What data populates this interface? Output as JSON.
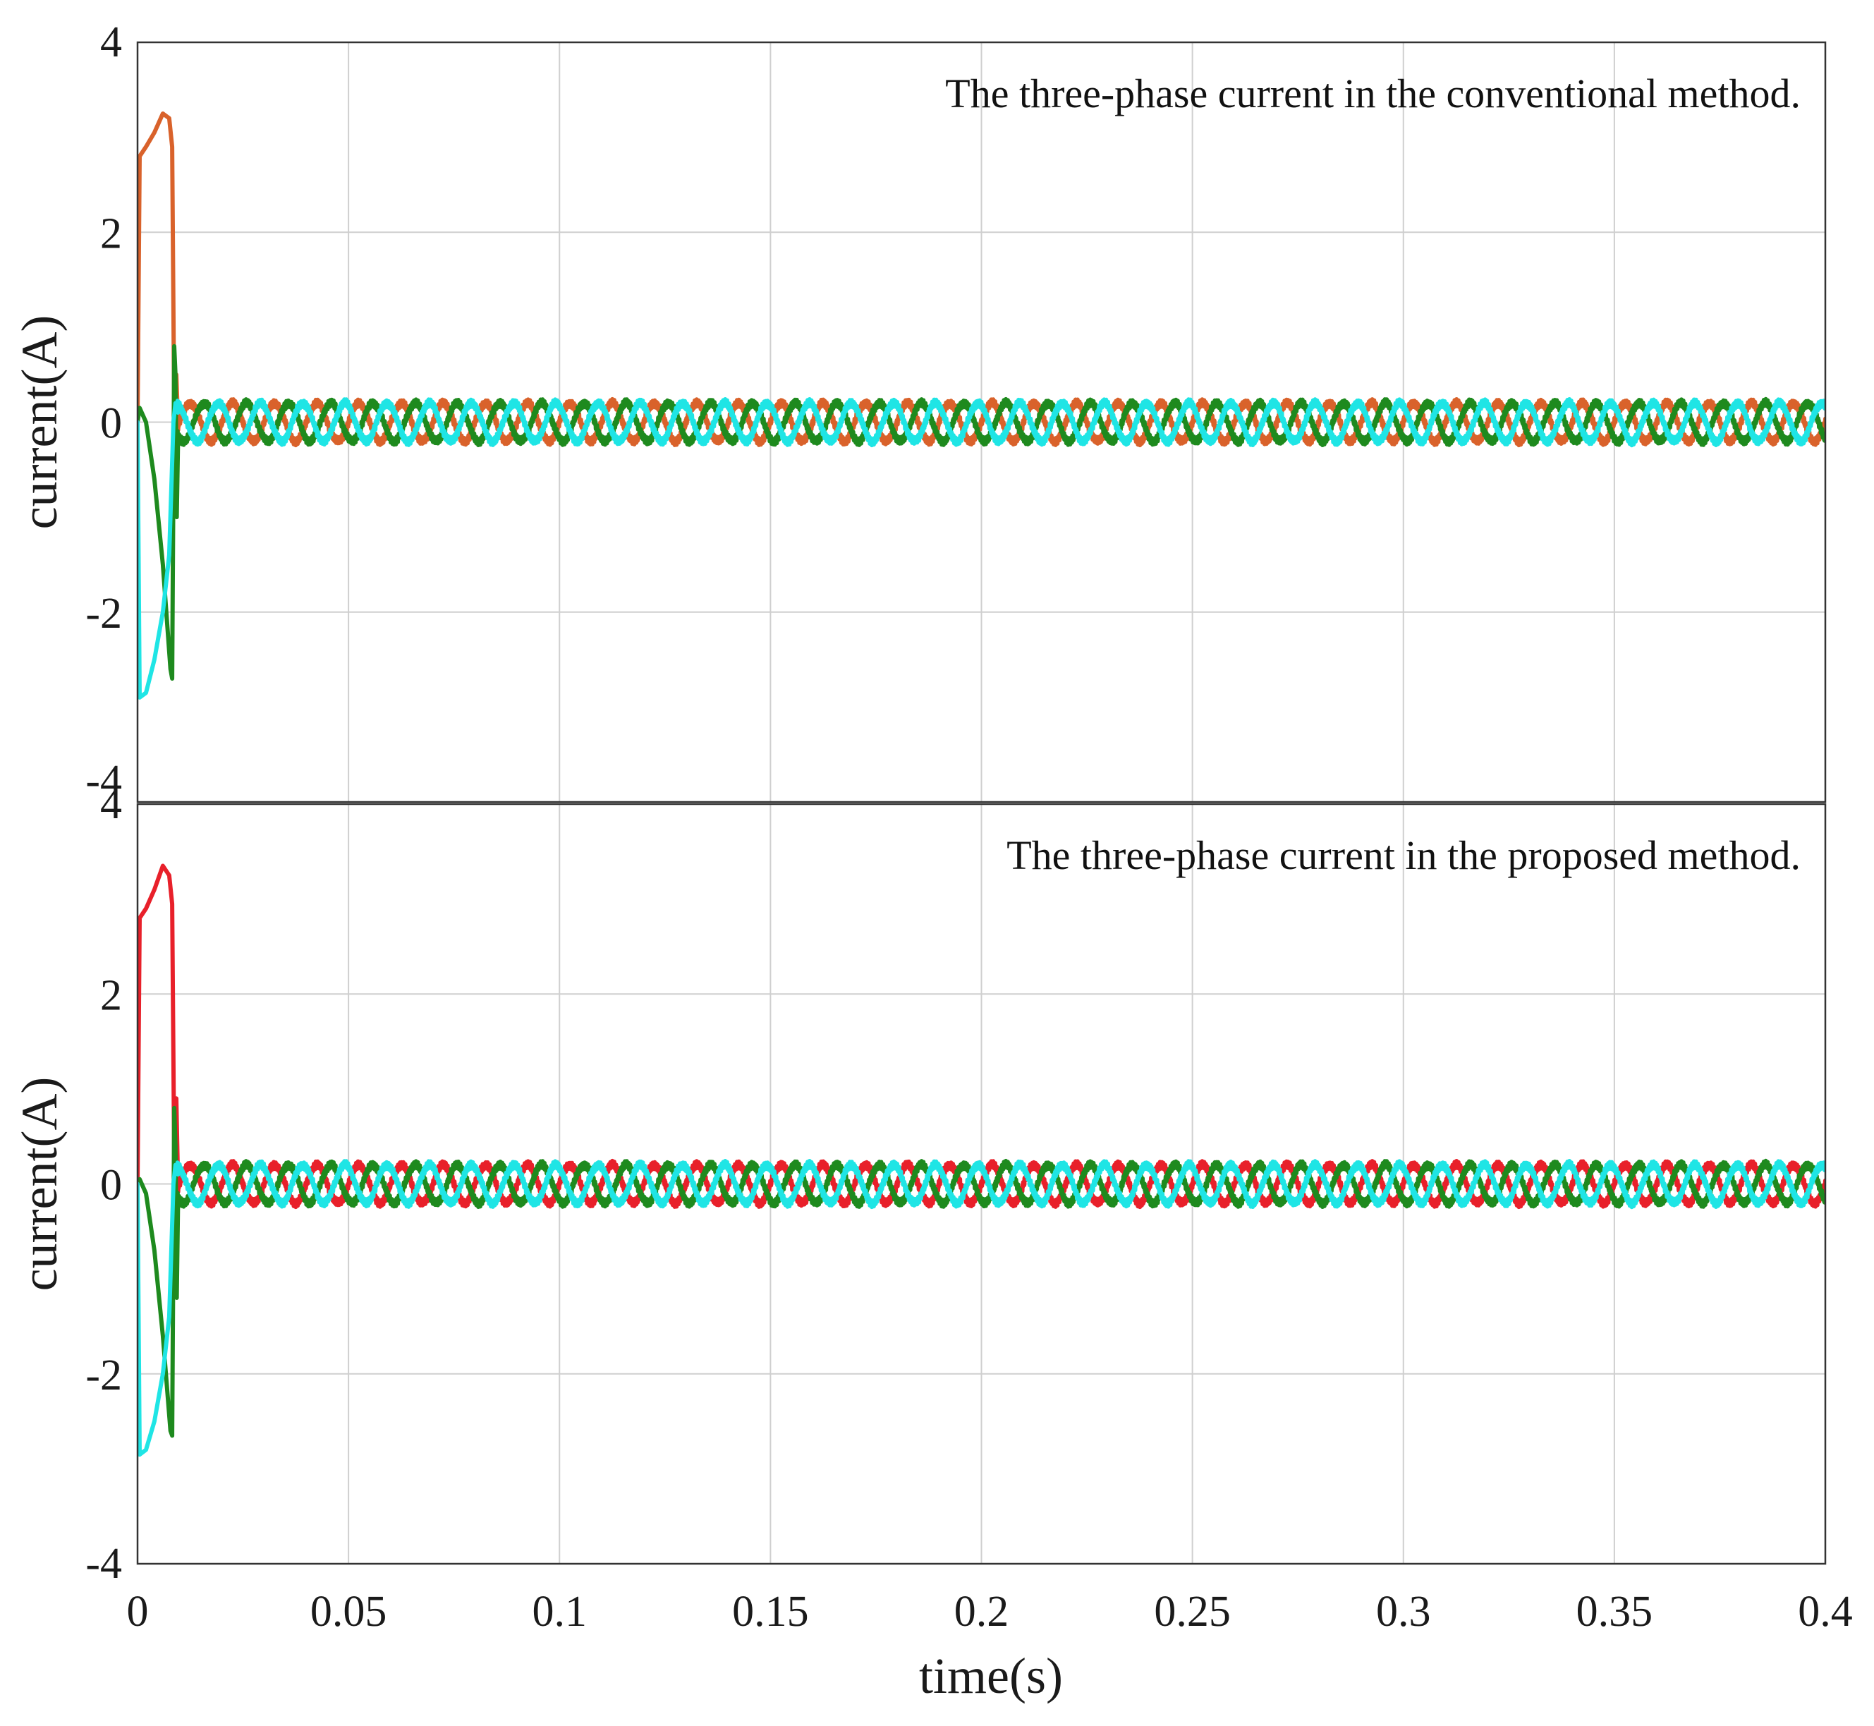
{
  "figure": {
    "xlabel": "time(s)"
  },
  "chart_data": [
    {
      "type": "line",
      "annotation": "The three-phase current in the conventional method.",
      "ylabel": "current(A)",
      "xlim": [
        0,
        0.4
      ],
      "ylim": [
        -4,
        4
      ],
      "xticks": [
        0,
        0.05,
        0.1,
        0.15,
        0.2,
        0.25,
        0.3,
        0.35,
        0.4
      ],
      "xtick_labels": [
        "0",
        "0.05",
        "0.1",
        "0.15",
        "0.2",
        "0.25",
        "0.3",
        "0.35",
        "0.4"
      ],
      "yticks": [
        -4,
        -2,
        0,
        2,
        4
      ],
      "ytick_labels": [
        "-4",
        "-2",
        "0",
        "2",
        "4"
      ],
      "grid": true,
      "steady_state": {
        "amplitude": 0.2,
        "frequency_hz": 100,
        "start_time": 0.0095
      },
      "series": [
        {
          "color": "#d9622b",
          "phase_deg": 0,
          "transient": {
            "x": [
              0,
              0.0005,
              0.002,
              0.004,
              0.006,
              0.0075,
              0.0082,
              0.0088,
              0.0092,
              0.0096
            ],
            "y": [
              0,
              2.8,
              2.9,
              3.05,
              3.25,
              3.2,
              2.9,
              -0.5,
              0.5,
              0
            ]
          }
        },
        {
          "color": "#1e8a1e",
          "phase_deg": -120,
          "transient": {
            "x": [
              0,
              0.0005,
              0.002,
              0.004,
              0.006,
              0.0078,
              0.0082,
              0.0087,
              0.009,
              0.0093,
              0.0096
            ],
            "y": [
              0,
              0.15,
              0,
              -0.6,
              -1.5,
              -2.6,
              -2.7,
              0.8,
              0.5,
              -1.0,
              -0.2
            ]
          }
        },
        {
          "color": "#1fe5e5",
          "phase_deg": 120,
          "transient": {
            "x": [
              0,
              0.0005,
              0.002,
              0.004,
              0.006,
              0.0075,
              0.0085,
              0.009,
              0.0096
            ],
            "y": [
              0,
              -2.9,
              -2.85,
              -2.5,
              -2.0,
              -1.4,
              0,
              0.2,
              0.1
            ]
          }
        }
      ]
    },
    {
      "type": "line",
      "annotation": "The three-phase current in the proposed method.",
      "ylabel": "current(A)",
      "xlim": [
        0,
        0.4
      ],
      "ylim": [
        -4,
        4
      ],
      "xticks": [
        0,
        0.05,
        0.1,
        0.15,
        0.2,
        0.25,
        0.3,
        0.35,
        0.4
      ],
      "xtick_labels": [
        "0",
        "0.05",
        "0.1",
        "0.15",
        "0.2",
        "0.25",
        "0.3",
        "0.35",
        "0.4"
      ],
      "yticks": [
        -4,
        -2,
        0,
        2,
        4
      ],
      "ytick_labels": [
        "-4",
        "-2",
        "0",
        "2",
        "4"
      ],
      "grid": true,
      "steady_state": {
        "amplitude": 0.2,
        "frequency_hz": 100,
        "start_time": 0.0095
      },
      "series": [
        {
          "color": "#e8202a",
          "phase_deg": 0,
          "transient": {
            "x": [
              0,
              0.0005,
              0.002,
              0.004,
              0.006,
              0.0075,
              0.0082,
              0.0088,
              0.0092,
              0.0096
            ],
            "y": [
              0,
              2.8,
              2.9,
              3.1,
              3.35,
              3.25,
              2.95,
              -0.3,
              0.9,
              0
            ]
          }
        },
        {
          "color": "#1e8a1e",
          "phase_deg": -120,
          "transient": {
            "x": [
              0,
              0.0005,
              0.002,
              0.004,
              0.006,
              0.0078,
              0.0082,
              0.0087,
              0.009,
              0.0093,
              0.0096
            ],
            "y": [
              0,
              0.05,
              -0.1,
              -0.7,
              -1.6,
              -2.6,
              -2.65,
              0.8,
              0.4,
              -1.2,
              -0.2
            ]
          }
        },
        {
          "color": "#1fe5e5",
          "phase_deg": 120,
          "transient": {
            "x": [
              0,
              0.0005,
              0.002,
              0.004,
              0.006,
              0.0075,
              0.0085,
              0.009,
              0.0096
            ],
            "y": [
              0,
              -2.85,
              -2.8,
              -2.5,
              -2.0,
              -1.4,
              0,
              0.2,
              0.1
            ]
          }
        }
      ]
    }
  ]
}
